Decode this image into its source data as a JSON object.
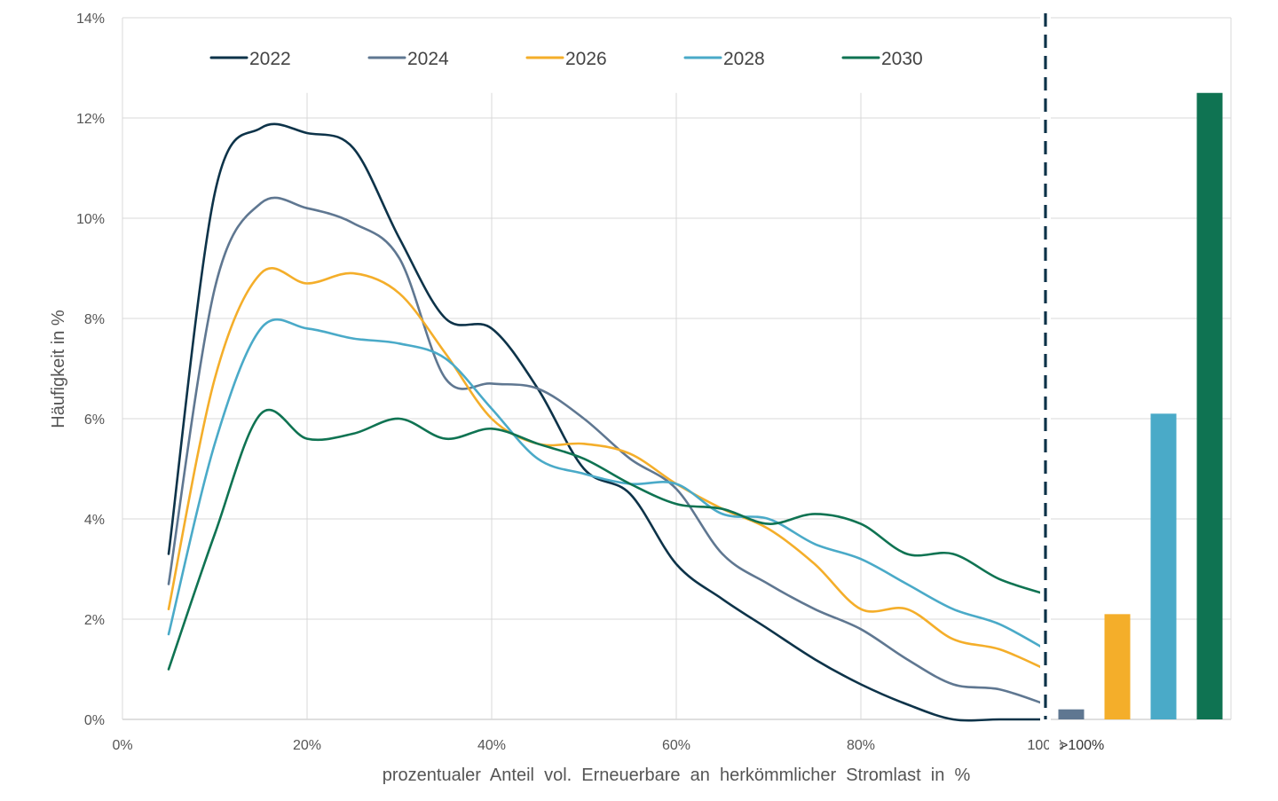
{
  "chart_data": {
    "type": "line",
    "xlabel": "prozentualer  Anteil  vol.  Erneuerbare  an  herkömmlicher  Stromlast  in  %",
    "ylabel": "Häufigkeit in %",
    "xlim": [
      0,
      100
    ],
    "ylim": [
      0,
      14
    ],
    "x_ticks": [
      "0%",
      "20%",
      "40%",
      "60%",
      "80%",
      "100%"
    ],
    "y_ticks": [
      "0%",
      "2%",
      "4%",
      "6%",
      "8%",
      "10%",
      "12%",
      "14%"
    ],
    "bar_category_label": ">100%",
    "legend_position": "top",
    "grid": true,
    "threshold_line": {
      "x": 100,
      "style": "dashed",
      "color": "#0d3349"
    },
    "x": [
      5,
      10,
      15,
      20,
      25,
      30,
      35,
      40,
      45,
      50,
      55,
      60,
      65,
      70,
      75,
      80,
      85,
      90,
      95,
      100
    ],
    "series": [
      {
        "name": "2022",
        "color": "#0d3349",
        "values": [
          3.3,
          10.5,
          11.8,
          11.7,
          11.4,
          9.6,
          8.0,
          7.8,
          6.6,
          5.0,
          4.5,
          3.1,
          2.4,
          1.8,
          1.2,
          0.7,
          0.3,
          0.0,
          0.0,
          0.0
        ],
        "bar": 0
      },
      {
        "name": "2024",
        "color": "#5f7791",
        "values": [
          2.7,
          8.6,
          10.3,
          10.2,
          9.9,
          9.2,
          6.8,
          6.7,
          6.6,
          6.0,
          5.2,
          4.6,
          3.3,
          2.7,
          2.2,
          1.8,
          1.2,
          0.7,
          0.6,
          0.3
        ],
        "bar": 0.2
      },
      {
        "name": "2026",
        "color": "#f4ae2a",
        "values": [
          2.2,
          6.8,
          8.9,
          8.7,
          8.9,
          8.5,
          7.3,
          6.0,
          5.5,
          5.5,
          5.3,
          4.7,
          4.2,
          3.8,
          3.1,
          2.2,
          2.2,
          1.6,
          1.4,
          1.0
        ],
        "bar": 2.1
      },
      {
        "name": "2028",
        "color": "#4aaac8",
        "values": [
          1.7,
          5.5,
          7.8,
          7.8,
          7.6,
          7.5,
          7.2,
          6.2,
          5.2,
          4.9,
          4.7,
          4.7,
          4.1,
          4.0,
          3.5,
          3.2,
          2.7,
          2.2,
          1.9,
          1.4
        ],
        "bar": 6.1
      },
      {
        "name": "2030",
        "color": "#0f7352",
        "values": [
          1.0,
          3.7,
          6.1,
          5.6,
          5.7,
          6.0,
          5.6,
          5.8,
          5.5,
          5.2,
          4.7,
          4.3,
          4.2,
          3.9,
          4.1,
          3.9,
          3.3,
          3.3,
          2.8,
          2.5
        ],
        "bar": 12.5
      }
    ]
  }
}
